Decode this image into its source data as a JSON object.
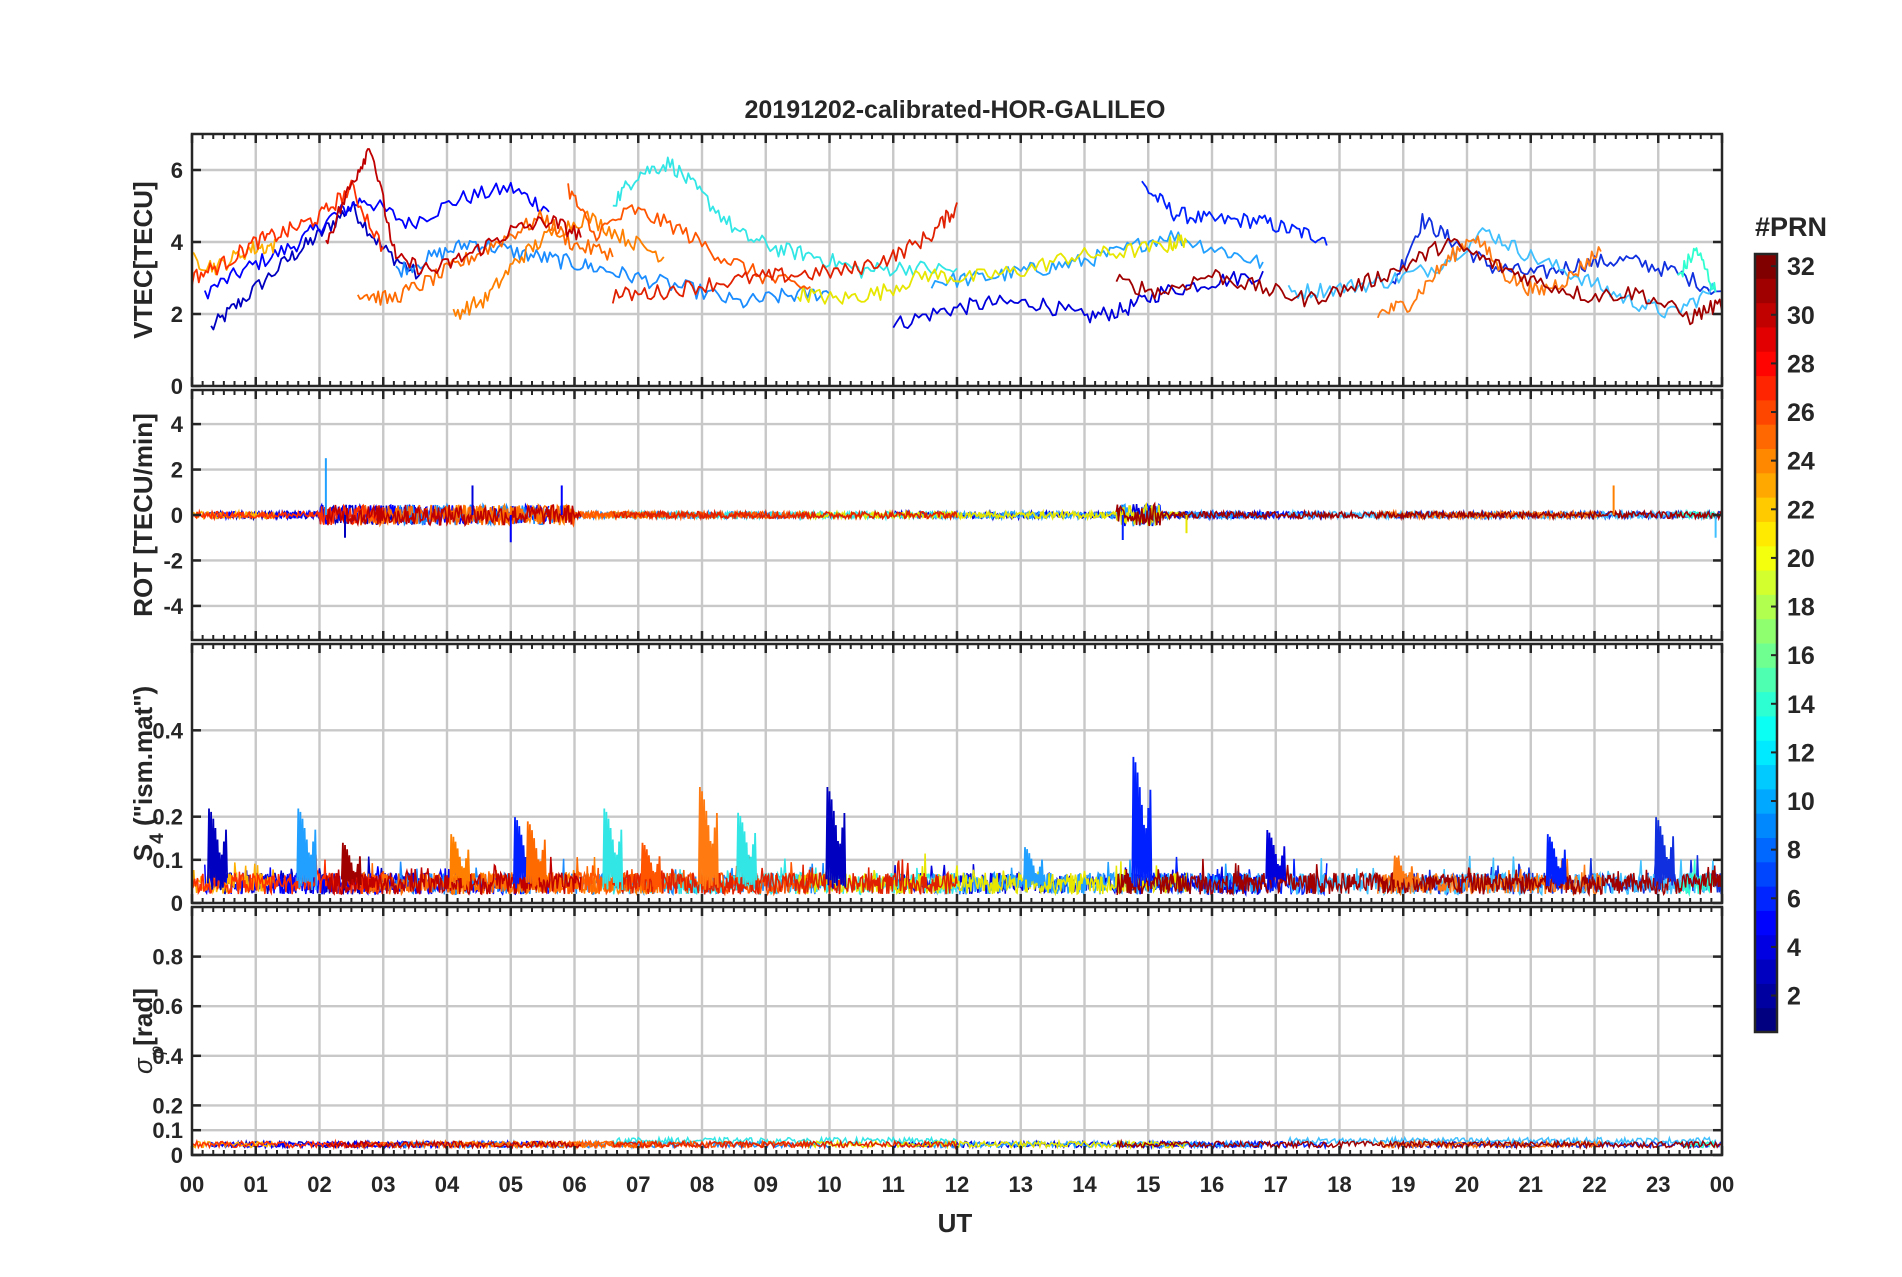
{
  "chart_data": {
    "type": "line",
    "title": "20191202-calibrated-HOR-GALILEO",
    "xlabel": "UT",
    "x_tick_labels": [
      "00",
      "01",
      "02",
      "03",
      "04",
      "05",
      "06",
      "07",
      "08",
      "09",
      "10",
      "11",
      "12",
      "13",
      "14",
      "15",
      "16",
      "17",
      "18",
      "19",
      "20",
      "21",
      "22",
      "23",
      "00"
    ],
    "xlim": [
      0,
      24
    ],
    "grid": true,
    "colorbar": {
      "label": "#PRN",
      "range": [
        1,
        32
      ],
      "tick_labels": [
        "2",
        "4",
        "6",
        "8",
        "10",
        "12",
        "14",
        "16",
        "18",
        "20",
        "22",
        "24",
        "26",
        "28",
        "30",
        "32"
      ],
      "colormap": "jet"
    },
    "panels": [
      {
        "ylabel": "VTEC[TECU]",
        "ylim": [
          0,
          7
        ],
        "y_ticks": [
          0,
          2,
          4,
          6
        ],
        "y_tick_labels": [
          "0",
          "2",
          "4",
          "6"
        ],
        "description": "Vertical total electron content tracks per satellite (approximate)",
        "series": [
          {
            "prn": 2,
            "color": "#0000c0",
            "x": [
              0.3,
              0.8,
              1.5,
              2.0,
              2.5,
              3.0,
              3.6
            ],
            "y": [
              1.6,
              2.4,
              3.5,
              4.2,
              5.0,
              3.8,
              3.0
            ]
          },
          {
            "prn": 4,
            "color": "#0000ff",
            "x": [
              0.2,
              0.9,
              1.6,
              2.2,
              2.7,
              3.4,
              4.2,
              5.0,
              5.6
            ],
            "y": [
              2.6,
              3.3,
              3.9,
              4.7,
              5.2,
              4.5,
              5.2,
              5.5,
              4.9
            ]
          },
          {
            "prn": 5,
            "color": "#0020ff",
            "x": [
              14.9,
              15.4,
              16.0,
              16.7,
              17.3,
              17.8
            ],
            "y": [
              5.6,
              4.8,
              4.6,
              4.6,
              4.3,
              4.1
            ]
          },
          {
            "prn": 3,
            "color": "#0000dd",
            "x": [
              11.0,
              11.8,
              12.5,
              13.3,
              14.0,
              14.6,
              15.2,
              16.0,
              16.8
            ],
            "y": [
              1.7,
              2.1,
              2.3,
              2.3,
              1.9,
              2.1,
              2.6,
              2.9,
              3.1
            ]
          },
          {
            "prn": 6,
            "color": "#1030e0",
            "x": [
              18.8,
              19.3,
              19.8,
              20.4,
              21.1,
              21.8,
              22.5,
              23.2,
              24.0
            ],
            "y": [
              2.7,
              4.6,
              4.0,
              3.3,
              3.1,
              3.4,
              3.5,
              3.2,
              2.6
            ]
          },
          {
            "prn": 9,
            "color": "#1a8cff",
            "x": [
              3.2,
              3.8,
              4.4,
              5.1,
              5.7,
              6.3,
              7.0,
              7.8,
              8.6,
              9.3,
              10.0
            ],
            "y": [
              3.2,
              3.6,
              4.0,
              3.7,
              3.5,
              3.3,
              3.0,
              2.7,
              2.3,
              2.5,
              2.6
            ]
          },
          {
            "prn": 10,
            "color": "#22a0ff",
            "x": [
              11.6,
              12.4,
              13.1,
              13.8,
              14.5,
              15.3,
              16.1,
              16.8
            ],
            "y": [
              2.9,
              3.0,
              3.2,
              3.4,
              3.7,
              4.2,
              3.8,
              3.4
            ]
          },
          {
            "prn": 11,
            "color": "#40c0ff",
            "x": [
              17.2,
              17.9,
              18.7,
              19.5,
              20.3,
              21.0,
              21.8,
              22.5,
              23.2,
              23.9
            ],
            "y": [
              2.6,
              2.7,
              2.9,
              3.3,
              4.3,
              3.6,
              3.0,
              2.4,
              2.0,
              2.7
            ]
          },
          {
            "prn": 13,
            "color": "#33e6e6",
            "x": [
              6.6,
              7.0,
              7.5,
              8.0,
              8.6,
              9.2,
              9.8,
              10.5,
              11.2,
              12.0
            ],
            "y": [
              5.1,
              5.9,
              6.2,
              5.3,
              4.2,
              3.8,
              3.6,
              3.2,
              3.3,
              3.2
            ]
          },
          {
            "prn": 14,
            "color": "#2fffd0",
            "x": [
              23.3,
              23.6,
              23.9
            ],
            "y": [
              3.0,
              3.8,
              2.6
            ]
          },
          {
            "prn": 20,
            "color": "#e6e600",
            "x": [
              9.5,
              10.1,
              10.8,
              11.5,
              12.2,
              13.0,
              13.8,
              14.5,
              15.3,
              15.6
            ],
            "y": [
              2.6,
              2.4,
              2.6,
              3.1,
              3.0,
              3.2,
              3.6,
              3.7,
              3.9,
              4.1
            ]
          },
          {
            "prn": 22,
            "color": "#ffb000",
            "x": [
              0.0,
              0.4,
              0.9,
              1.3
            ],
            "y": [
              3.5,
              3.3,
              3.8,
              3.9
            ]
          },
          {
            "prn": 24,
            "color": "#ff8000",
            "x": [
              4.1,
              4.6,
              5.1,
              5.6,
              6.2,
              6.8,
              7.4
            ],
            "y": [
              2.0,
              2.4,
              3.5,
              4.2,
              4.7,
              4.1,
              3.6
            ]
          },
          {
            "prn": 25,
            "color": "#ff6a00",
            "x": [
              2.6,
              3.1,
              3.7,
              4.3,
              4.9,
              5.5,
              6.0,
              6.6
            ],
            "y": [
              2.6,
              2.4,
              2.9,
              3.5,
              4.1,
              4.7,
              3.9,
              3.7
            ]
          },
          {
            "prn": 26,
            "color": "#ff5500",
            "x": [
              5.9,
              6.3,
              6.9,
              7.6,
              8.3,
              9.0,
              9.7
            ],
            "y": [
              5.5,
              4.2,
              4.9,
              4.4,
              3.6,
              3.0,
              2.7
            ]
          },
          {
            "prn": 23,
            "color": "#ff7a10",
            "x": [
              18.6,
              19.1,
              19.6,
              20.1,
              20.6,
              21.1,
              21.6,
              22.1
            ],
            "y": [
              2.0,
              2.3,
              3.3,
              4.2,
              3.1,
              2.6,
              3.0,
              3.8
            ]
          },
          {
            "prn": 27,
            "color": "#ff3000",
            "x": [
              0.0,
              0.5,
              1.0,
              1.5,
              2.0,
              2.5,
              3.0
            ],
            "y": [
              3.0,
              3.4,
              4.0,
              4.3,
              4.7,
              5.5,
              3.8
            ]
          },
          {
            "prn": 28,
            "color": "#e02000",
            "x": [
              6.6,
              7.3,
              8.0,
              8.8,
              9.5,
              10.3,
              11.0,
              11.6,
              12.0
            ],
            "y": [
              2.5,
              2.6,
              2.8,
              3.0,
              3.1,
              3.2,
              3.6,
              4.2,
              5.0
            ]
          },
          {
            "prn": 30,
            "color": "#c00000",
            "x": [
              2.1,
              2.5,
              2.8,
              3.2,
              3.8,
              4.4,
              5.0,
              5.6,
              6.1
            ],
            "y": [
              4.0,
              5.6,
              6.7,
              3.5,
              3.2,
              3.7,
              4.3,
              4.6,
              4.2
            ]
          },
          {
            "prn": 31,
            "color": "#a00000",
            "x": [
              14.5,
              15.2,
              16.0,
              16.8,
              17.5,
              18.3,
              19.0,
              19.7,
              20.4,
              21.1,
              21.9,
              22.7,
              23.5,
              24.0
            ],
            "y": [
              2.9,
              2.6,
              3.1,
              2.7,
              2.4,
              2.8,
              3.3,
              4.0,
              3.4,
              2.9,
              2.5,
              2.6,
              1.9,
              2.3
            ]
          }
        ]
      },
      {
        "ylabel": "ROT [TECU/min]",
        "ylim": [
          -5.5,
          5.5
        ],
        "y_ticks": [
          -4,
          -2,
          0,
          2,
          4
        ],
        "y_tick_labels": [
          "-4",
          "-2",
          "0",
          "2",
          "4"
        ],
        "description": "Rate of TEC change, noisy around zero with spikes near 02-06 UT and 14.5-15 UT",
        "spikes": [
          {
            "x": 2.1,
            "y": 2.5,
            "color": "#22a0ff"
          },
          {
            "x": 2.4,
            "y": -1.0,
            "color": "#0000c0"
          },
          {
            "x": 4.4,
            "y": 1.3,
            "color": "#0000dd"
          },
          {
            "x": 5.0,
            "y": -1.2,
            "color": "#0000ff"
          },
          {
            "x": 5.8,
            "y": 1.3,
            "color": "#0000ff"
          },
          {
            "x": 14.6,
            "y": -1.1,
            "color": "#0020ff"
          },
          {
            "x": 15.6,
            "y": -0.8,
            "color": "#e6e600"
          },
          {
            "x": 22.3,
            "y": 1.3,
            "color": "#ff8000"
          },
          {
            "x": 23.9,
            "y": -1.0,
            "color": "#40c0ff"
          }
        ]
      },
      {
        "ylabel": "S4 (\"ism.mat\")",
        "ylabel_main": "S",
        "ylabel_sub": "4",
        "ylabel_rest": " (\"ism.mat\")",
        "ylim": [
          0,
          0.6
        ],
        "y_ticks": [
          0,
          0.1,
          0.2,
          0.4
        ],
        "y_tick_labels": [
          "0",
          "0.1",
          "0.2",
          "0.4"
        ],
        "description": "Amplitude scintillation index, mostly below 0.1 with bursts",
        "bursts": [
          {
            "x": 0.4,
            "y": 0.22,
            "color": "#0000c0"
          },
          {
            "x": 1.8,
            "y": 0.22,
            "color": "#22a0ff"
          },
          {
            "x": 2.5,
            "y": 0.14,
            "color": "#a00000"
          },
          {
            "x": 4.2,
            "y": 0.16,
            "color": "#ff8000"
          },
          {
            "x": 5.2,
            "y": 0.2,
            "color": "#0020ff"
          },
          {
            "x": 5.4,
            "y": 0.19,
            "color": "#ff6a00"
          },
          {
            "x": 6.6,
            "y": 0.22,
            "color": "#33e6e6"
          },
          {
            "x": 7.2,
            "y": 0.14,
            "color": "#ff5500"
          },
          {
            "x": 8.1,
            "y": 0.27,
            "color": "#ff7a10"
          },
          {
            "x": 8.7,
            "y": 0.21,
            "color": "#33e6e6"
          },
          {
            "x": 10.1,
            "y": 0.27,
            "color": "#0000c0"
          },
          {
            "x": 13.2,
            "y": 0.13,
            "color": "#22a0ff"
          },
          {
            "x": 14.9,
            "y": 0.34,
            "color": "#0020ff"
          },
          {
            "x": 17.0,
            "y": 0.17,
            "color": "#0000dd"
          },
          {
            "x": 19.0,
            "y": 0.11,
            "color": "#ff7a10"
          },
          {
            "x": 21.4,
            "y": 0.16,
            "color": "#0020ff"
          },
          {
            "x": 23.1,
            "y": 0.2,
            "color": "#1030e0"
          }
        ]
      },
      {
        "ylabel": "σφ[rad]",
        "ylabel_main": "σ",
        "ylabel_sub": "φ",
        "ylabel_rest": "[rad]",
        "ylim": [
          0,
          1.0
        ],
        "y_ticks": [
          0,
          0.1,
          0.2,
          0.4,
          0.6,
          0.8
        ],
        "y_tick_labels": [
          "0",
          "0.1",
          "0.2",
          "0.4",
          "0.6",
          "0.8"
        ],
        "description": "Phase scintillation index, near baseline 0.02-0.08"
      }
    ]
  }
}
